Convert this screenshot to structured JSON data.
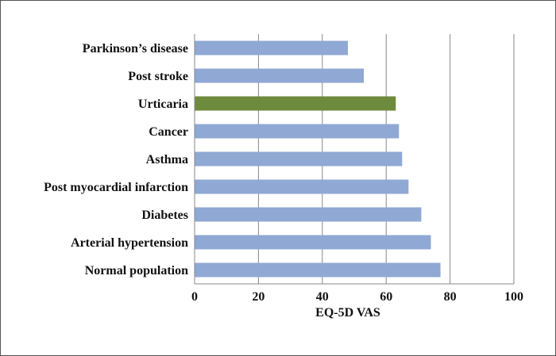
{
  "chart_data": {
    "type": "bar",
    "orientation": "horizontal",
    "categories": [
      "Parkinson’s disease",
      "Post stroke",
      "Urticaria",
      "Cancer",
      "Asthma",
      "Post myocardial infarction",
      "Diabetes",
      "Arterial hypertension",
      "Normal population"
    ],
    "values": [
      48,
      53,
      63,
      64,
      65,
      67,
      71,
      74,
      77
    ],
    "bar_colors": [
      "#8fa8d4",
      "#8fa8d4",
      "#6e8a3c",
      "#8fa8d4",
      "#8fa8d4",
      "#8fa8d4",
      "#8fa8d4",
      "#8fa8d4",
      "#8fa8d4"
    ],
    "xlabel": "EQ-5D VAS",
    "ylabel": "",
    "title": "",
    "xlim": [
      0,
      100
    ],
    "xticks": [
      0,
      20,
      40,
      60,
      80,
      100
    ],
    "grid": "vertical",
    "legend": "none"
  }
}
